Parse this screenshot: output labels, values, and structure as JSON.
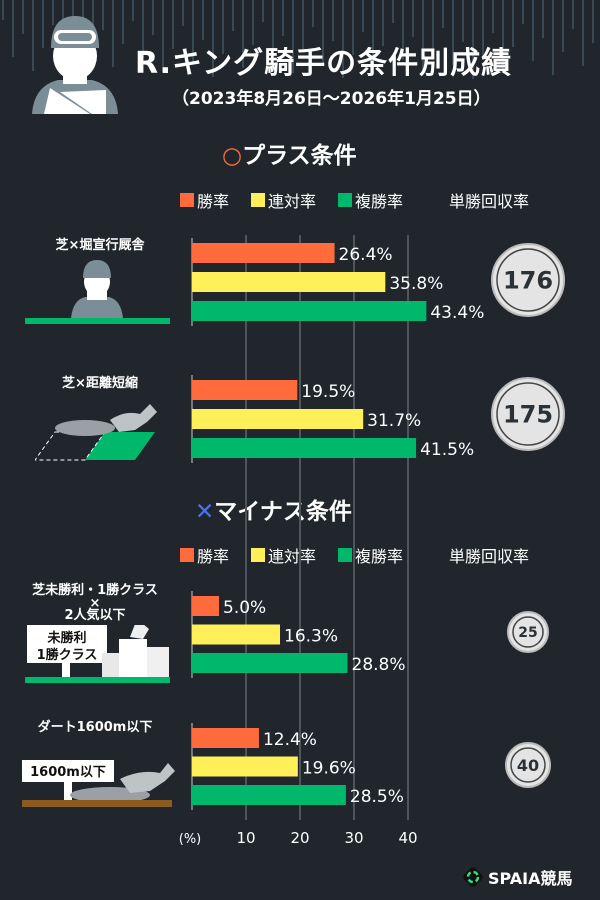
{
  "header": {
    "title": "R.キング騎手の条件別成績",
    "subtitle": "（2023年8月26日～2026年1月25日）"
  },
  "sections": {
    "plus": {
      "mark": "○",
      "label": "プラス条件"
    },
    "minus": {
      "mark": "✕",
      "label": "マイナス条件"
    }
  },
  "legend": {
    "win": "勝率",
    "top2": "連対率",
    "top3": "複勝率",
    "roi": "単勝回収率"
  },
  "colors": {
    "win": "#ff6b3d",
    "top2": "#fff05a",
    "top3": "#00b86b",
    "plus_mark": "#ff6b3d",
    "minus_mark": "#4a6cff"
  },
  "signs": {
    "maiden_line1": "未勝利",
    "maiden_line2": "1勝クラス",
    "dirt": "1600m以下"
  },
  "chart_data": {
    "type": "bar",
    "orientation": "horizontal",
    "xlabel": "(%)",
    "xlim": [
      0,
      40
    ],
    "xticks": [
      10,
      20,
      30,
      40
    ],
    "grid": true,
    "series_names": [
      "勝率",
      "連対率",
      "複勝率"
    ],
    "groups": [
      {
        "label_lines": [
          "芝×堀宣行厩舎"
        ],
        "values": [
          26.4,
          35.8,
          43.4
        ],
        "labels": [
          "26.4%",
          "35.8%",
          "43.4%"
        ],
        "roi": "176",
        "section": "plus"
      },
      {
        "label_lines": [
          "芝×距離短縮"
        ],
        "values": [
          19.5,
          31.7,
          41.5
        ],
        "labels": [
          "19.5%",
          "31.7%",
          "41.5%"
        ],
        "roi": "175",
        "section": "plus"
      },
      {
        "label_lines": [
          "芝未勝利・1勝クラス",
          "×",
          "2人気以下"
        ],
        "values": [
          5.0,
          16.3,
          28.8
        ],
        "labels": [
          "5.0%",
          "16.3%",
          "28.8%"
        ],
        "roi": "25",
        "section": "minus"
      },
      {
        "label_lines": [
          "ダート1600m以下"
        ],
        "values": [
          12.4,
          19.6,
          28.5
        ],
        "labels": [
          "12.4%",
          "19.6%",
          "28.5%"
        ],
        "roi": "40",
        "section": "minus"
      }
    ]
  },
  "logo": {
    "text": "SPAIA競馬"
  }
}
